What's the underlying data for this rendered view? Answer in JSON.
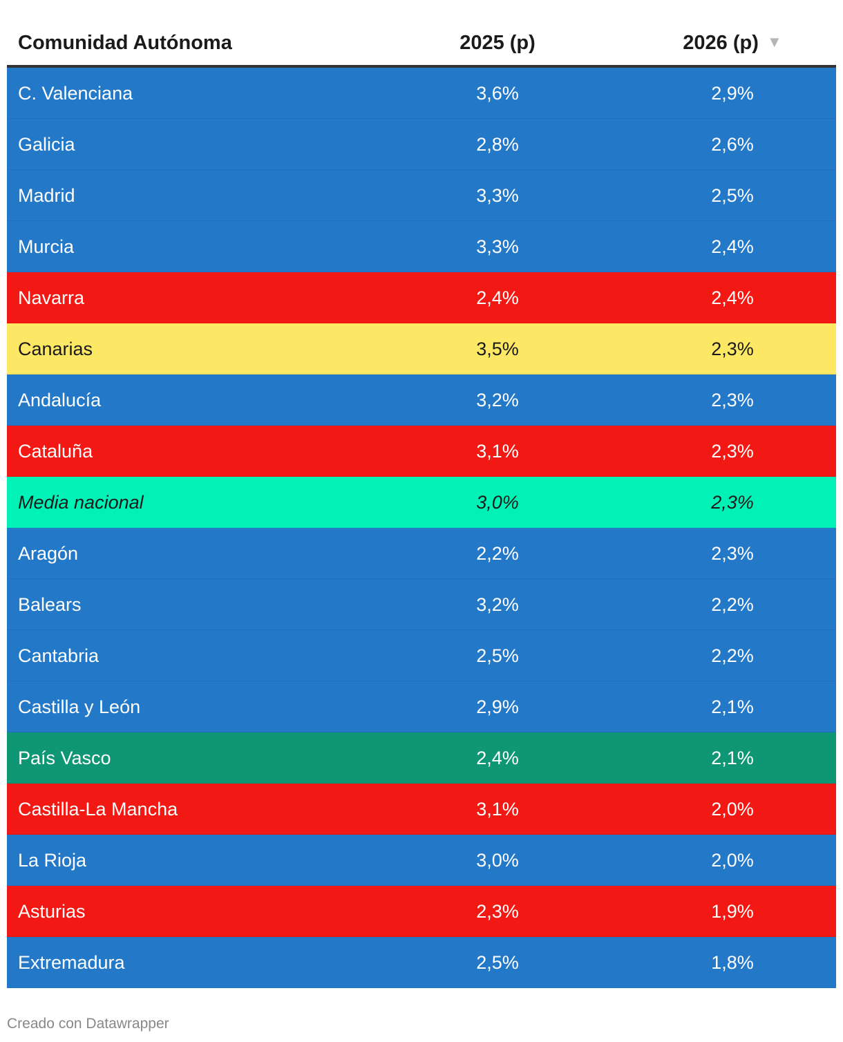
{
  "chart_data": {
    "type": "table",
    "columns": [
      "Comunidad Autónoma",
      "2025 (p)",
      "2026 (p)"
    ],
    "sorted_column": "2026 (p)",
    "sort_direction": "descending",
    "rows": [
      {
        "name": "C. Valenciana",
        "v2025": "3,6%",
        "v2026": "2,9%",
        "color": "#2379c8",
        "text": "light"
      },
      {
        "name": "Galicia",
        "v2025": "2,8%",
        "v2026": "2,6%",
        "color": "#2379c8",
        "text": "light"
      },
      {
        "name": "Madrid",
        "v2025": "3,3%",
        "v2026": "2,5%",
        "color": "#2379c8",
        "text": "light"
      },
      {
        "name": "Murcia",
        "v2025": "3,3%",
        "v2026": "2,4%",
        "color": "#2379c8",
        "text": "light"
      },
      {
        "name": "Navarra",
        "v2025": "2,4%",
        "v2026": "2,4%",
        "color": "#f21813",
        "text": "light"
      },
      {
        "name": "Canarias",
        "v2025": "3,5%",
        "v2026": "2,3%",
        "color": "#fde865",
        "text": "dark"
      },
      {
        "name": "Andalucía",
        "v2025": "3,2%",
        "v2026": "2,3%",
        "color": "#2379c8",
        "text": "light"
      },
      {
        "name": "Cataluña",
        "v2025": "3,1%",
        "v2026": "2,3%",
        "color": "#f21813",
        "text": "light"
      },
      {
        "name": "Media nacional",
        "v2025": "3,0%",
        "v2026": "2,3%",
        "color": "#00f2b6",
        "text": "dark",
        "italic": true
      },
      {
        "name": "Aragón",
        "v2025": "2,2%",
        "v2026": "2,3%",
        "color": "#2379c8",
        "text": "light"
      },
      {
        "name": "Balears",
        "v2025": "3,2%",
        "v2026": "2,2%",
        "color": "#2379c8",
        "text": "light"
      },
      {
        "name": "Cantabria",
        "v2025": "2,5%",
        "v2026": "2,2%",
        "color": "#2379c8",
        "text": "light"
      },
      {
        "name": "Castilla y León",
        "v2025": "2,9%",
        "v2026": "2,1%",
        "color": "#2379c8",
        "text": "light"
      },
      {
        "name": "País Vasco",
        "v2025": "2,4%",
        "v2026": "2,1%",
        "color": "#0f9775",
        "text": "light"
      },
      {
        "name": "Castilla-La Mancha",
        "v2025": "3,1%",
        "v2026": "2,0%",
        "color": "#f21813",
        "text": "light"
      },
      {
        "name": "La Rioja",
        "v2025": "3,0%",
        "v2026": "2,0%",
        "color": "#2379c8",
        "text": "light"
      },
      {
        "name": "Asturias",
        "v2025": "2,3%",
        "v2026": "1,9%",
        "color": "#f21813",
        "text": "light"
      },
      {
        "name": "Extremadura",
        "v2025": "2,5%",
        "v2026": "1,8%",
        "color": "#2379c8",
        "text": "light"
      }
    ]
  },
  "header": {
    "name": "Comunidad Autónoma",
    "col_2025": "2025 (p)",
    "col_2026": "2026 (p)",
    "sort_icon": "▼"
  },
  "footer": {
    "credit": "Creado con Datawrapper"
  }
}
